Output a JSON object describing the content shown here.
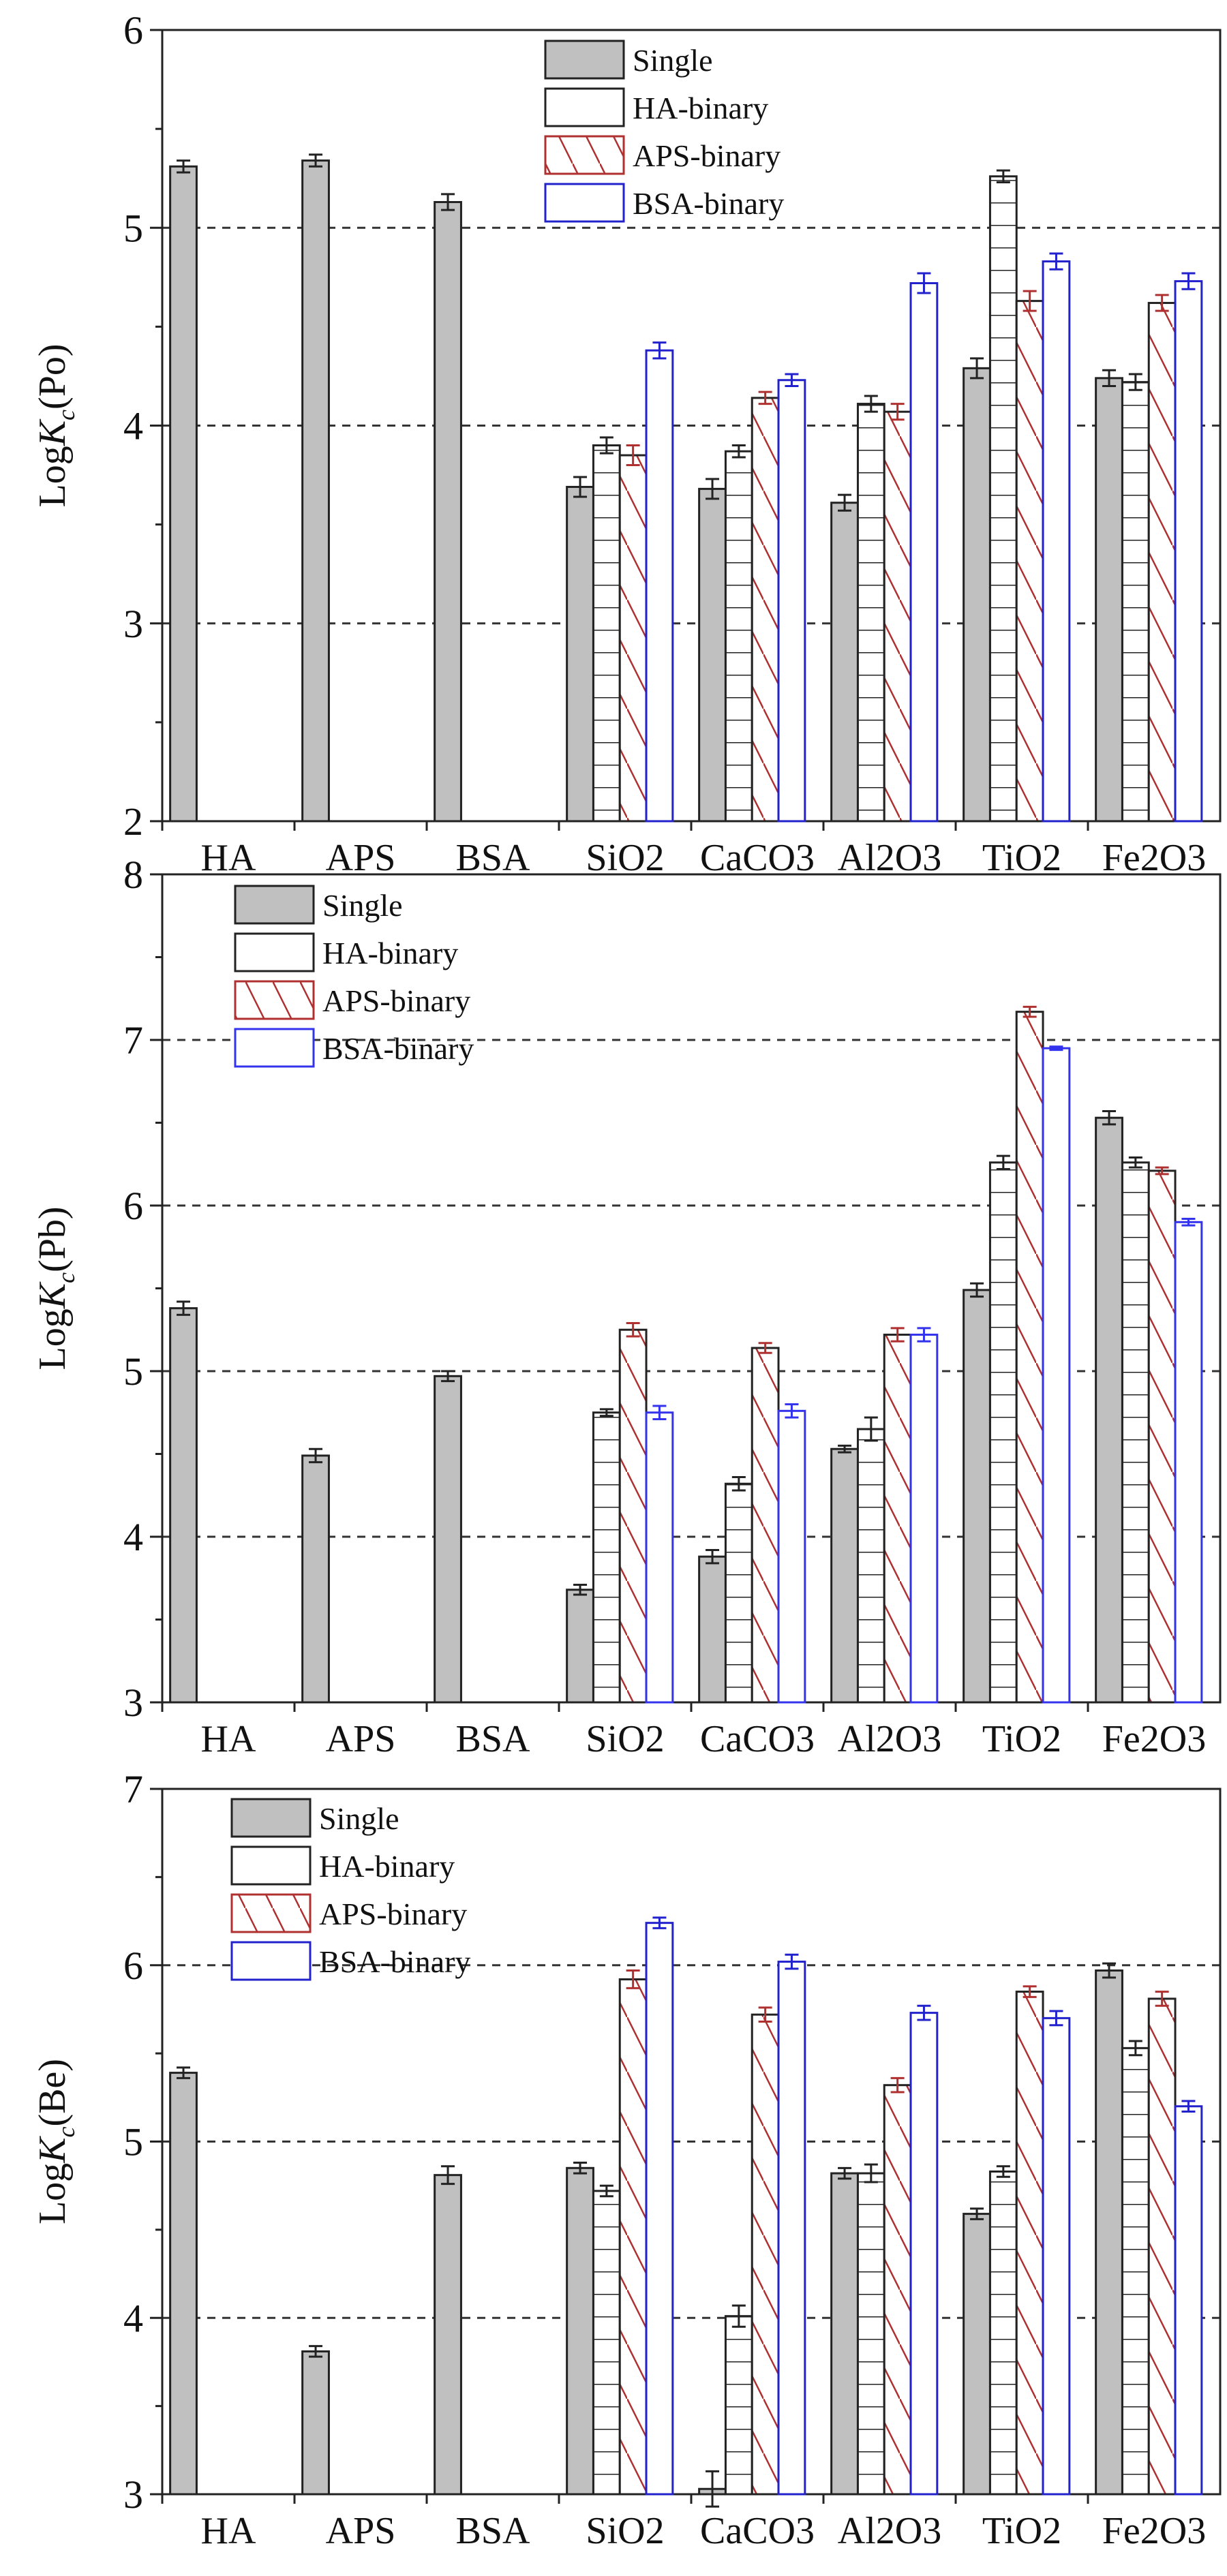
{
  "chart_data": [
    {
      "type": "bar",
      "ylabel": "LogKc(Po)",
      "ylabel_main": "Log",
      "ylabel_k": "K",
      "ylabel_sub": "c",
      "ylabel_tail": "(Po)",
      "ylim": [
        2,
        6
      ],
      "yticks": [
        2,
        3,
        4,
        5,
        6
      ],
      "grid": [
        3,
        4,
        5
      ],
      "legend_position": "top-center",
      "categories": [
        "HA",
        "APS",
        "BSA",
        "SiO2",
        "CaCO3",
        "Al2O3",
        "TiO2",
        "Fe2O3"
      ],
      "series": [
        {
          "name": "Single",
          "values": [
            5.31,
            5.34,
            5.13,
            3.69,
            3.68,
            3.61,
            4.29,
            4.24
          ],
          "errors": [
            0.03,
            0.03,
            0.04,
            0.05,
            0.05,
            0.04,
            0.05,
            0.04
          ]
        },
        {
          "name": "HA-binary",
          "values": [
            null,
            null,
            null,
            3.9,
            3.87,
            4.11,
            5.26,
            4.22
          ],
          "errors": [
            null,
            null,
            null,
            0.04,
            0.03,
            0.04,
            0.03,
            0.04
          ]
        },
        {
          "name": "APS-binary",
          "values": [
            null,
            null,
            null,
            3.85,
            4.14,
            4.07,
            4.63,
            4.62
          ],
          "errors": [
            null,
            null,
            null,
            0.05,
            0.03,
            0.04,
            0.05,
            0.04
          ]
        },
        {
          "name": "BSA-binary",
          "values": [
            null,
            null,
            null,
            4.38,
            4.23,
            4.72,
            4.83,
            4.73
          ],
          "errors": [
            null,
            null,
            null,
            0.04,
            0.03,
            0.05,
            0.04,
            0.04
          ]
        }
      ]
    },
    {
      "type": "bar",
      "ylabel": "LogKc(Pb)",
      "ylabel_main": "Log",
      "ylabel_k": "K",
      "ylabel_sub": "c",
      "ylabel_tail": "(Pb)",
      "ylim": [
        3,
        8
      ],
      "yticks": [
        3,
        4,
        5,
        6,
        7,
        8
      ],
      "grid": [
        4,
        5,
        6,
        7
      ],
      "legend_position": "top-left",
      "categories": [
        "HA",
        "APS",
        "BSA",
        "SiO2",
        "CaCO3",
        "Al2O3",
        "TiO2",
        "Fe2O3"
      ],
      "series": [
        {
          "name": "Single",
          "values": [
            5.38,
            4.49,
            4.97,
            3.68,
            3.88,
            4.53,
            5.49,
            6.53
          ],
          "errors": [
            0.04,
            0.04,
            0.03,
            0.03,
            0.04,
            0.02,
            0.04,
            0.04
          ]
        },
        {
          "name": "HA-binary",
          "values": [
            null,
            null,
            null,
            4.75,
            4.32,
            4.65,
            6.26,
            6.26
          ],
          "errors": [
            null,
            null,
            null,
            0.02,
            0.04,
            0.07,
            0.04,
            0.03
          ]
        },
        {
          "name": "APS-binary",
          "values": [
            null,
            null,
            null,
            5.25,
            5.14,
            5.22,
            7.17,
            6.21
          ],
          "errors": [
            null,
            null,
            null,
            0.04,
            0.03,
            0.04,
            0.03,
            0.02
          ]
        },
        {
          "name": "BSA-binary",
          "values": [
            null,
            null,
            null,
            4.75,
            4.76,
            5.22,
            6.95,
            5.9
          ],
          "errors": [
            null,
            null,
            null,
            0.04,
            0.04,
            0.04,
            0.01,
            0.02
          ]
        }
      ]
    },
    {
      "type": "bar",
      "ylabel": "LogKc(Be)",
      "ylabel_main": "Log",
      "ylabel_k": "K",
      "ylabel_sub": "c",
      "ylabel_tail": "(Be)",
      "ylim": [
        3,
        7
      ],
      "yticks": [
        3,
        4,
        5,
        6,
        7
      ],
      "grid": [
        4,
        5,
        6
      ],
      "legend_position": "top-left",
      "categories": [
        "HA",
        "APS",
        "BSA",
        "SiO2",
        "CaCO3",
        "Al2O3",
        "TiO2",
        "Fe2O3"
      ],
      "series": [
        {
          "name": "Single",
          "values": [
            5.39,
            3.81,
            4.81,
            4.85,
            3.03,
            4.82,
            4.59,
            5.97
          ],
          "errors": [
            0.03,
            0.03,
            0.05,
            0.03,
            0.1,
            0.03,
            0.03,
            0.04
          ]
        },
        {
          "name": "HA-binary",
          "values": [
            null,
            null,
            null,
            4.72,
            4.01,
            4.82,
            4.83,
            5.53
          ],
          "errors": [
            null,
            null,
            null,
            0.03,
            0.06,
            0.05,
            0.03,
            0.04
          ]
        },
        {
          "name": "APS-binary",
          "values": [
            null,
            null,
            null,
            5.92,
            5.72,
            5.32,
            5.85,
            5.81
          ],
          "errors": [
            null,
            null,
            null,
            0.05,
            0.04,
            0.04,
            0.03,
            0.04
          ]
        },
        {
          "name": "BSA-binary",
          "values": [
            null,
            null,
            null,
            6.24,
            6.02,
            5.73,
            5.7,
            5.2
          ],
          "errors": [
            null,
            null,
            null,
            0.03,
            0.04,
            0.04,
            0.04,
            0.03
          ]
        }
      ]
    }
  ],
  "colors": {
    "single_fill": "#c0c0c0",
    "outline": "#222222",
    "aps": "#b03030",
    "bsa": "#2222cc",
    "bsa_pb": "#3333ee"
  }
}
